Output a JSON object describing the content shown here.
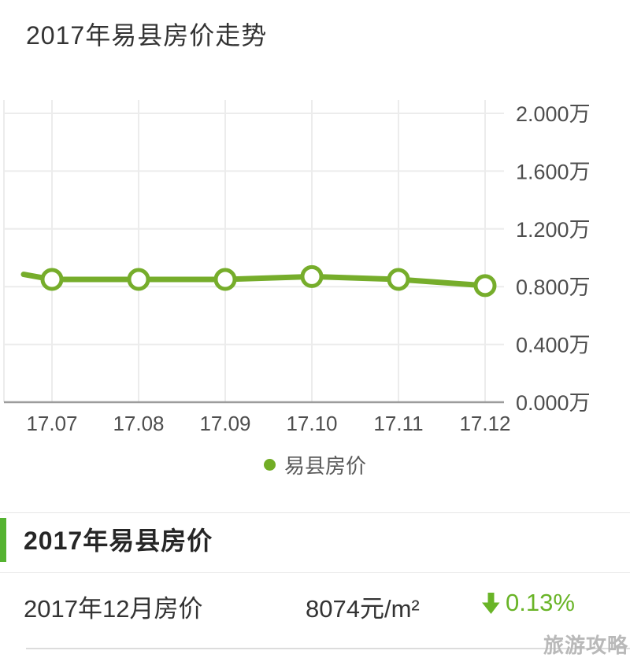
{
  "colors": {
    "line_green": "#76ad2b",
    "legend_dot": "#72ad26",
    "accent_green": "#55b331",
    "change_green": "#69b427",
    "grid": "#ececec",
    "axis": "#9c9c9c",
    "tick_text": "#4e4e4e",
    "marker_fill": "#ffffff"
  },
  "chart": {
    "title": "2017年易县房价走势",
    "legend_label": "易县房价"
  },
  "chart_data": {
    "type": "line",
    "title": "2017年易县房价走势",
    "x": [
      "17.07",
      "17.08",
      "17.09",
      "17.10",
      "17.11",
      "17.12"
    ],
    "series": [
      {
        "name": "易县房价",
        "unit": "万",
        "values": [
          0.85,
          0.85,
          0.85,
          0.87,
          0.85,
          0.8074
        ],
        "lead_in_value": 0.885
      }
    ],
    "y_ticks": [
      "2.000万",
      "1.600万",
      "1.200万",
      "0.800万",
      "0.400万",
      "0.000万"
    ],
    "y_tick_values": [
      2.0,
      1.6,
      1.2,
      0.8,
      0.4,
      0.0
    ],
    "ylim": [
      0,
      2.0
    ],
    "grid": true,
    "legend_position": "bottom",
    "marker": "open-circle"
  },
  "section": {
    "heading": "2017年易县房价"
  },
  "detail": {
    "label": "2017年12月房价",
    "value": "8074元/m²",
    "change_value": "0.13%",
    "change_direction": "down"
  },
  "watermark": "旅游攻略"
}
